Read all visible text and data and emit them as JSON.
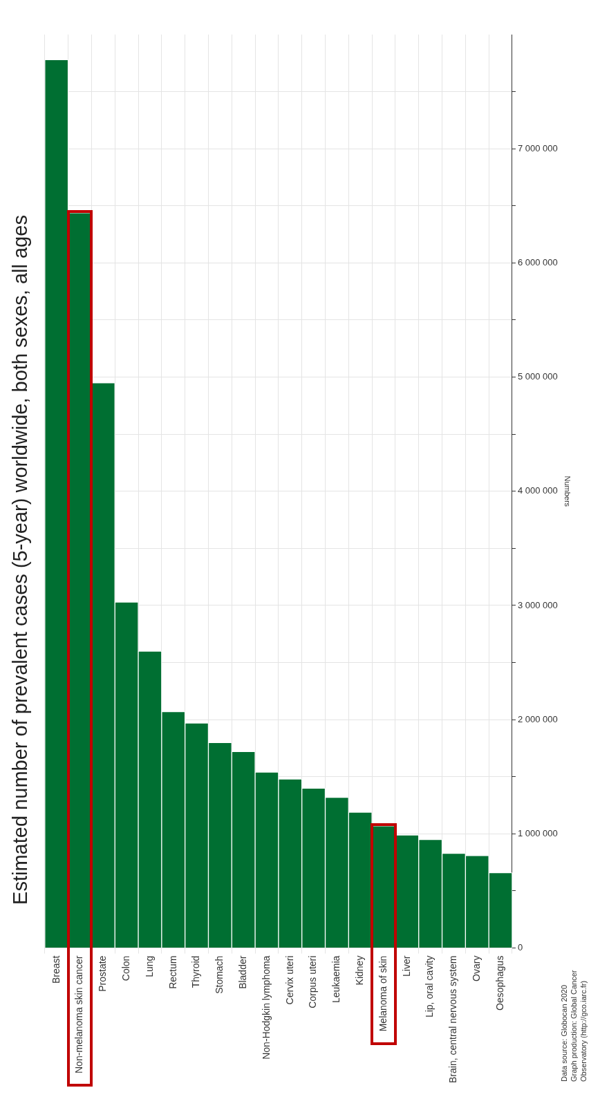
{
  "chart_data": {
    "type": "bar",
    "title": "Estimated number of prevalent cases (5-year) worldwide, both sexes, all ages",
    "ylabel": "Numbers",
    "categories": [
      "Breast",
      "Non-melanoma skin cancer",
      "Prostate",
      "Colon",
      "Lung",
      "Rectum",
      "Thyroid",
      "Stomach",
      "Bladder",
      "Non-Hodgkin lymphoma",
      "Cervix uteri",
      "Corpus uteri",
      "Leukaemia",
      "Kidney",
      "Melanoma of skin",
      "Liver",
      "Lip, oral cavity",
      "Brain, central nervous system",
      "Ovary",
      "Oesophagus"
    ],
    "values": [
      7780000,
      6440000,
      4950000,
      3030000,
      2600000,
      2070000,
      1970000,
      1800000,
      1720000,
      1540000,
      1480000,
      1400000,
      1320000,
      1190000,
      1070000,
      990000,
      950000,
      830000,
      810000,
      660000
    ],
    "color": "#006f32",
    "ylim": [
      0,
      8000000
    ],
    "yticks": [
      0,
      {
        "value": 500000,
        "label": null
      },
      {
        "value": 1000000,
        "label": "1 000 000"
      },
      {
        "value": 1500000,
        "label": null
      },
      {
        "value": 2000000,
        "label": "2 000 000"
      },
      {
        "value": 2500000,
        "label": null
      },
      {
        "value": 3000000,
        "label": "3 000 000"
      },
      {
        "value": 3500000,
        "label": null
      },
      {
        "value": 4000000,
        "label": "4 000 000"
      },
      {
        "value": 4500000,
        "label": null
      },
      {
        "value": 5000000,
        "label": "5 000 000"
      },
      {
        "value": 5500000,
        "label": null
      },
      {
        "value": 6000000,
        "label": "6 000 000"
      },
      {
        "value": 6500000,
        "label": null
      },
      {
        "value": 7000000,
        "label": "7 000 000"
      },
      {
        "value": 7500000,
        "label": null
      }
    ],
    "grid": true,
    "annotations": [
      "Data source: Globocan 2020",
      "Graph production: Global Cancer",
      "Observatory (http://gco.iarc.fr)"
    ]
  }
}
